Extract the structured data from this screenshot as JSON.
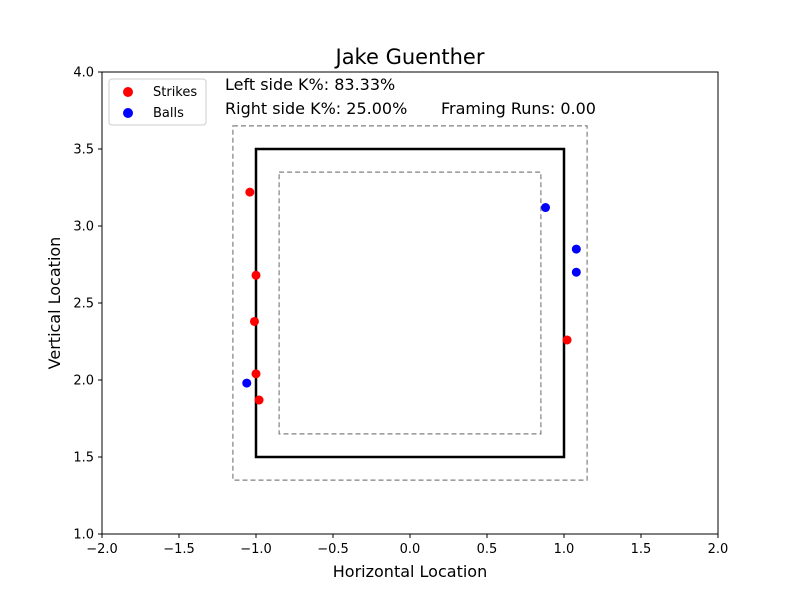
{
  "chart_data": {
    "type": "scatter",
    "title": "Jake Guenther",
    "xlabel": "Horizontal Location",
    "ylabel": "Vertical Location",
    "xlim": [
      -2.0,
      2.0
    ],
    "ylim": [
      1.0,
      4.0
    ],
    "x_ticks": [
      -2.0,
      -1.5,
      -1.0,
      -0.5,
      0.0,
      0.5,
      1.0,
      1.5,
      2.0
    ],
    "x_tick_labels": [
      "−2.0",
      "−1.5",
      "−1.0",
      "−0.5",
      "0.0",
      "0.5",
      "1.0",
      "1.5",
      "2.0"
    ],
    "y_ticks": [
      1.0,
      1.5,
      2.0,
      2.5,
      3.0,
      3.5,
      4.0
    ],
    "y_tick_labels": [
      "1.0",
      "1.5",
      "2.0",
      "2.5",
      "3.0",
      "3.5",
      "4.0"
    ],
    "grid": false,
    "legend_position": "top-left",
    "series": [
      {
        "name": "Strikes",
        "color": "#ff0000",
        "points": [
          {
            "x": -1.04,
            "y": 3.22
          },
          {
            "x": -1.0,
            "y": 2.68
          },
          {
            "x": -1.01,
            "y": 2.38
          },
          {
            "x": -1.0,
            "y": 2.04
          },
          {
            "x": -0.98,
            "y": 1.87
          },
          {
            "x": 1.02,
            "y": 2.26
          }
        ]
      },
      {
        "name": "Balls",
        "color": "#0000ff",
        "points": [
          {
            "x": -1.06,
            "y": 1.98
          },
          {
            "x": 0.88,
            "y": 3.12
          },
          {
            "x": 1.08,
            "y": 2.85
          },
          {
            "x": 1.08,
            "y": 2.7
          }
        ]
      }
    ],
    "zones": [
      {
        "name": "strike-zone",
        "style": "solid",
        "color": "#000000",
        "x": [
          -1.0,
          1.0
        ],
        "y": [
          1.5,
          3.5
        ]
      },
      {
        "name": "outer-shadow-zone",
        "style": "dashed",
        "color": "#808080",
        "x": [
          -1.15,
          1.15
        ],
        "y": [
          1.35,
          3.65
        ]
      },
      {
        "name": "inner-shadow-zone",
        "style": "dashed",
        "color": "#808080",
        "x": [
          -0.85,
          0.85
        ],
        "y": [
          1.65,
          3.35
        ]
      }
    ],
    "annotations": {
      "left_k": "Left side K%: 83.33%",
      "right_k": "Right side K%: 25.00%",
      "framing": "Framing Runs: 0.00"
    }
  }
}
